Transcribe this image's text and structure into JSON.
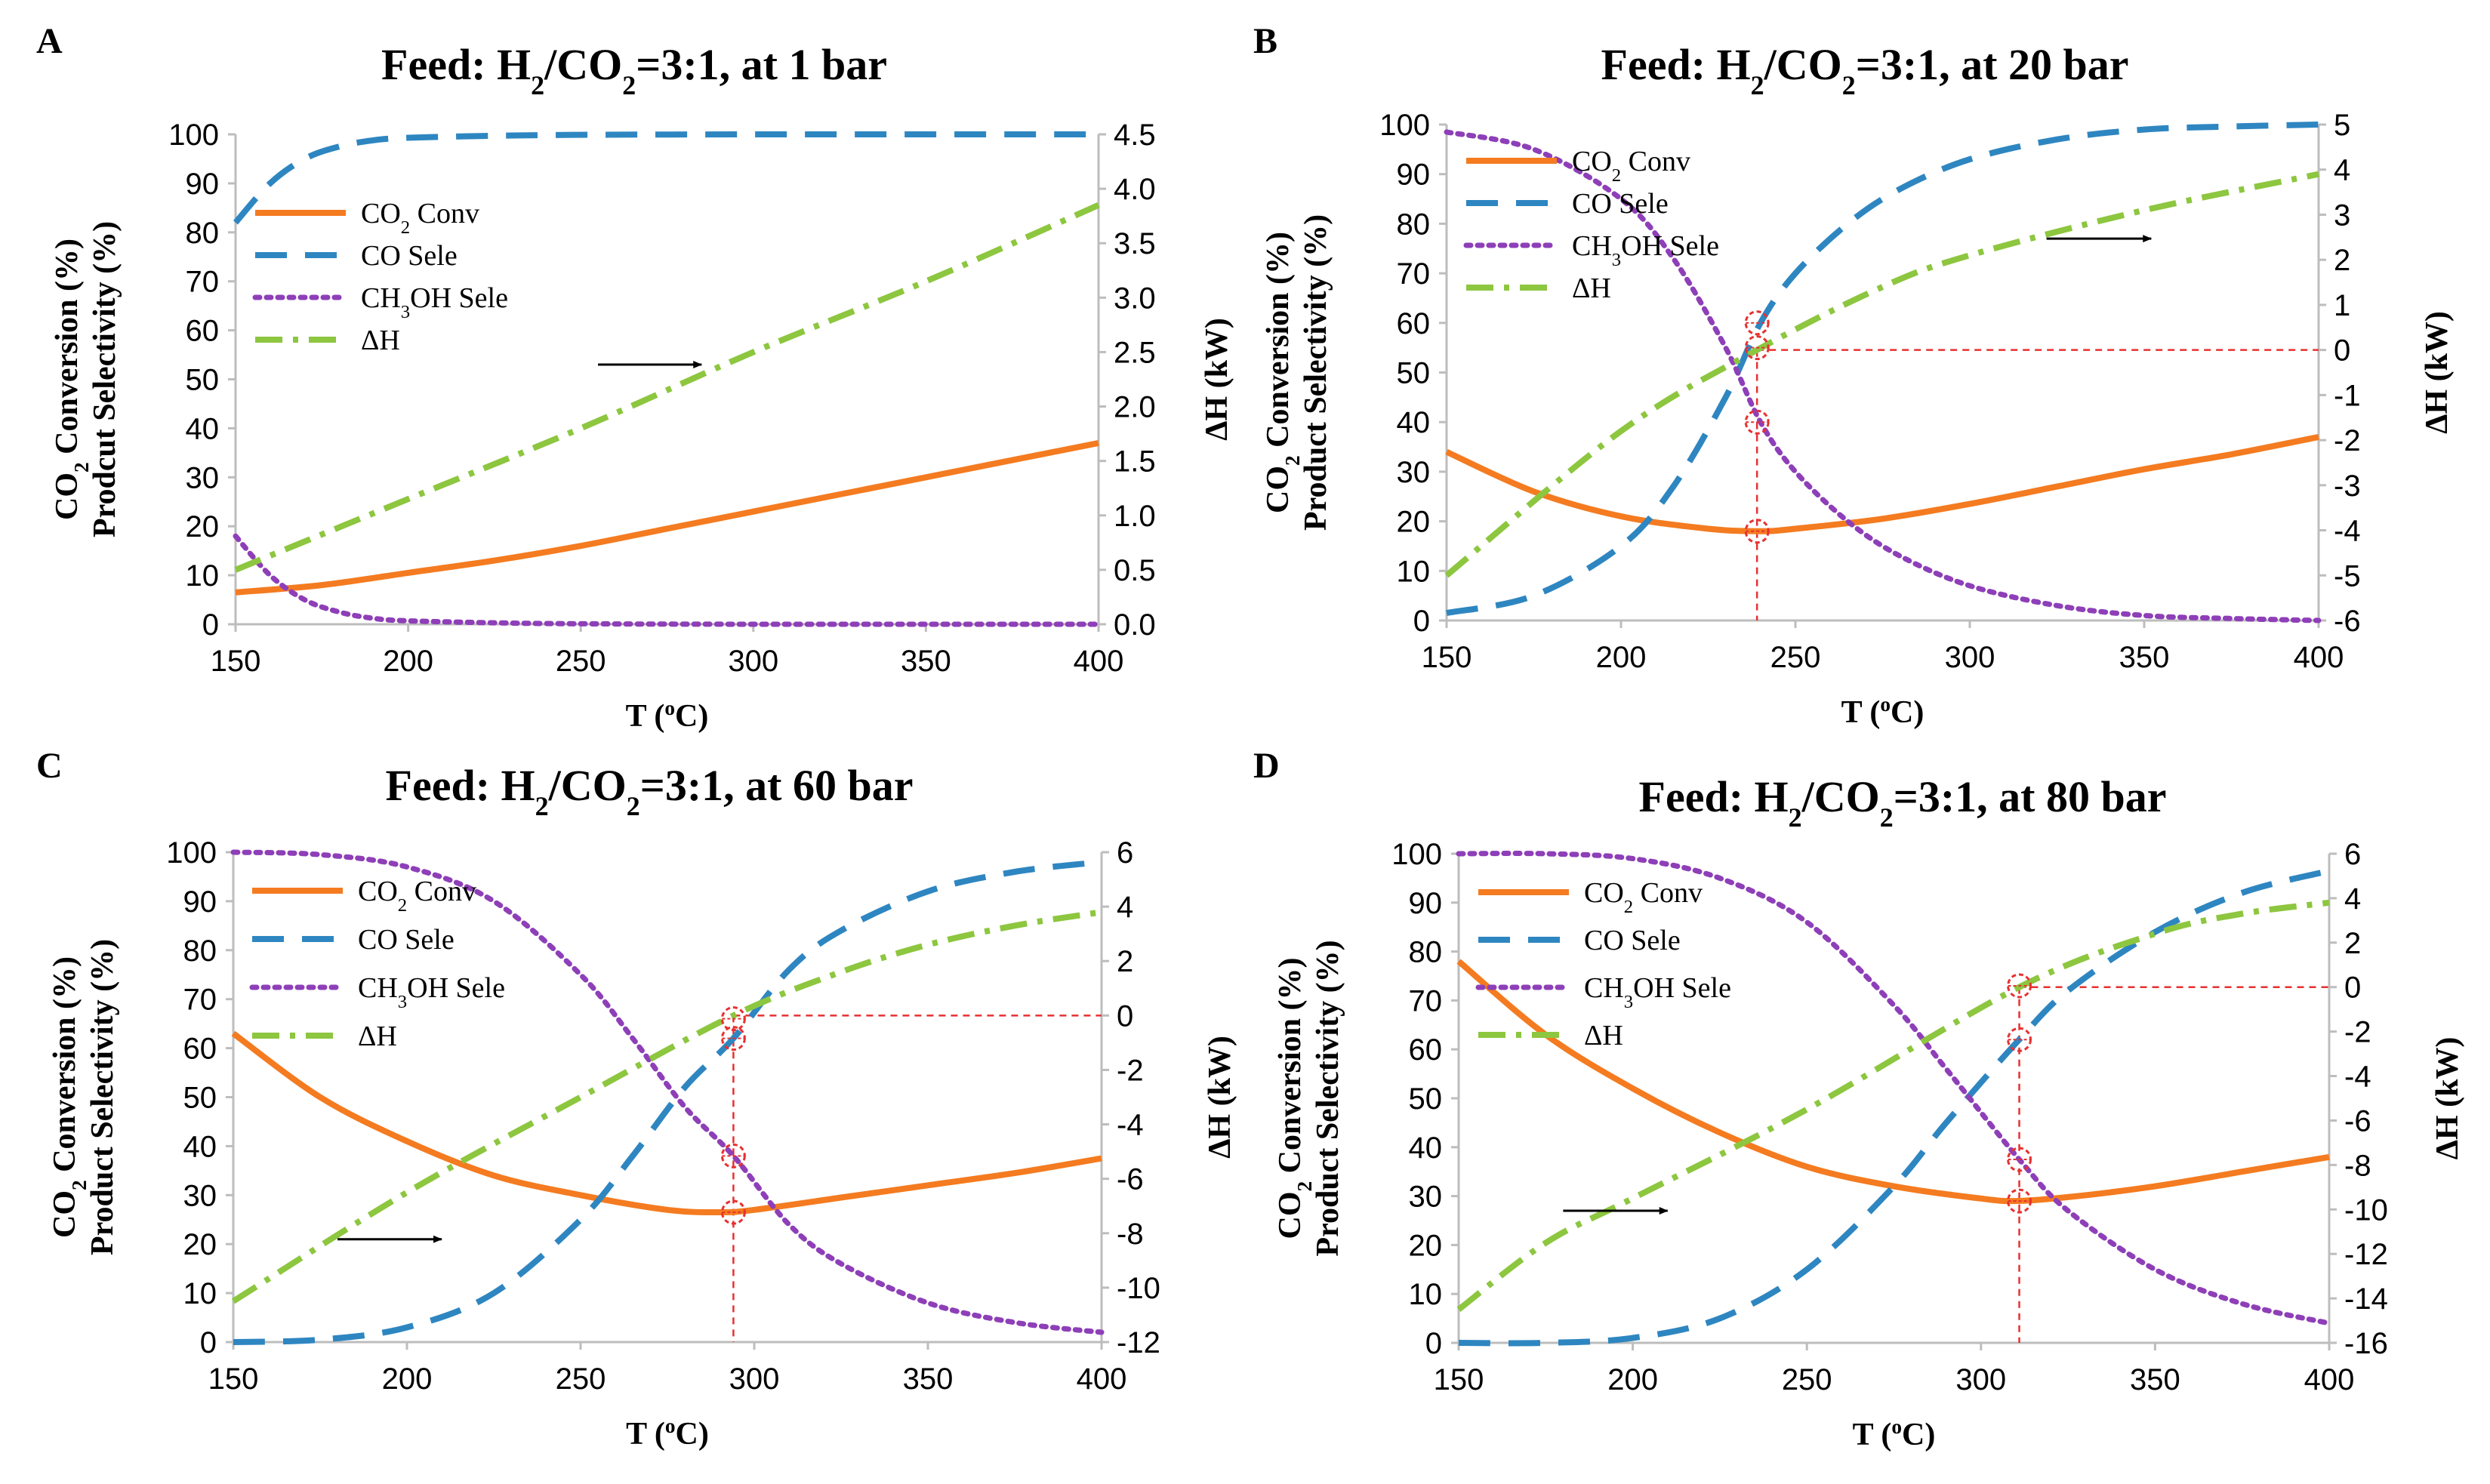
{
  "chart_data": [
    {
      "panel": "A",
      "type": "line",
      "title": "Feed: H2/CO2=3:1, at 1 bar",
      "xlabel": "T (oC)",
      "ylabel_left": [
        "CO2 Conversion (%)",
        "Prodcut Selectivity (%)"
      ],
      "ylabel_right": "ΔH (kW)",
      "xlim": [
        150,
        400
      ],
      "ylim_left": [
        0,
        100
      ],
      "ylim_right": [
        0,
        4.5
      ],
      "x_ticks": [
        150,
        200,
        250,
        300,
        350,
        400
      ],
      "y_ticks_left": [
        0,
        10,
        20,
        30,
        40,
        50,
        60,
        70,
        80,
        90,
        100
      ],
      "y_ticks_right": [
        "0.0",
        "0.5",
        "1.0",
        "1.5",
        "2.0",
        "2.5",
        "3.0",
        "3.5",
        "4.0",
        "4.5"
      ],
      "arrow": {
        "from": [
          255,
          53
        ],
        "to": [
          285,
          53
        ]
      },
      "crossing": null,
      "series": [
        {
          "key": "conv",
          "name": "CO2 Conv",
          "axis": "left",
          "x": [
            150,
            175,
            200,
            225,
            250,
            275,
            300,
            325,
            350,
            375,
            400
          ],
          "values": [
            6.5,
            8,
            10.5,
            13,
            16,
            19.5,
            23,
            26.5,
            30,
            33.5,
            37
          ]
        },
        {
          "key": "co",
          "name": "CO Sele",
          "axis": "left",
          "x": [
            150,
            160,
            170,
            180,
            190,
            200,
            225,
            250,
            300,
            350,
            400
          ],
          "values": [
            82,
            90,
            95,
            97.5,
            98.8,
            99.3,
            99.7,
            99.9,
            100,
            100,
            100
          ]
        },
        {
          "key": "ch3oh",
          "name": "CH3OH Sele",
          "axis": "left",
          "x": [
            150,
            160,
            170,
            180,
            190,
            200,
            225,
            250,
            300,
            350,
            400
          ],
          "values": [
            18,
            10,
            5,
            2.5,
            1.2,
            0.7,
            0.3,
            0.1,
            0,
            0,
            0
          ]
        },
        {
          "key": "dh",
          "name": "ΔH",
          "axis": "right",
          "x": [
            150,
            200,
            250,
            300,
            350,
            400
          ],
          "values": [
            0.5,
            1.15,
            1.8,
            2.5,
            3.15,
            3.85
          ]
        }
      ]
    },
    {
      "panel": "B",
      "type": "line",
      "title": "Feed: H2/CO2=3:1, at 20 bar",
      "xlabel": "T (oC)",
      "ylabel_left": [
        "CO2 Conversion (%)",
        "Product Selectivity (%)"
      ],
      "ylabel_right": "ΔH (kW)",
      "xlim": [
        150,
        400
      ],
      "ylim_left": [
        0,
        100
      ],
      "ylim_right": [
        -6,
        5
      ],
      "x_ticks": [
        150,
        200,
        250,
        300,
        350,
        400
      ],
      "y_ticks_left": [
        0,
        10,
        20,
        30,
        40,
        50,
        60,
        70,
        80,
        90,
        100
      ],
      "y_ticks_right": [
        -6,
        -5,
        -4,
        -3,
        -2,
        -1,
        0,
        1,
        2,
        3,
        4,
        5
      ],
      "arrow": {
        "from": [
          322,
          77
        ],
        "to": [
          352,
          77
        ]
      },
      "crossing": {
        "x": 239,
        "ref_y_right": 0,
        "markers_left": [
          60,
          55,
          40,
          18
        ]
      },
      "series": [
        {
          "key": "conv",
          "name": "CO2 Conv",
          "axis": "left",
          "x": [
            150,
            175,
            200,
            225,
            240,
            250,
            275,
            300,
            325,
            350,
            375,
            400
          ],
          "values": [
            34,
            26,
            21,
            18.5,
            18,
            18.5,
            20.5,
            23.5,
            27,
            30.5,
            33.5,
            37
          ]
        },
        {
          "key": "co",
          "name": "CO Sele",
          "axis": "left",
          "x": [
            150,
            175,
            200,
            215,
            230,
            240,
            250,
            265,
            280,
            300,
            325,
            350,
            375,
            400
          ],
          "values": [
            1.5,
            5,
            15,
            27,
            45,
            60,
            70,
            80,
            87,
            93,
            97,
            99,
            99.6,
            100
          ]
        },
        {
          "key": "ch3oh",
          "name": "CH3OH Sele",
          "axis": "left",
          "x": [
            150,
            175,
            200,
            215,
            230,
            240,
            250,
            265,
            280,
            300,
            325,
            350,
            375,
            400
          ],
          "values": [
            98.5,
            95,
            85,
            73,
            55,
            40,
            30,
            20,
            13,
            7,
            3,
            1,
            0.4,
            0
          ]
        },
        {
          "key": "dh",
          "name": "ΔH",
          "axis": "right",
          "x": [
            150,
            200,
            239,
            275,
            300,
            350,
            400
          ],
          "values": [
            -5,
            -1.8,
            0,
            1.4,
            2.1,
            3.1,
            3.9
          ]
        }
      ]
    },
    {
      "panel": "C",
      "type": "line",
      "title": "Feed: H2/CO2=3:1, at 60 bar",
      "xlabel": "T (oC)",
      "ylabel_left": [
        "CO2 Conversion (%)",
        "Product Selectivity (%)"
      ],
      "ylabel_right": "ΔH (kW)",
      "xlim": [
        150,
        400
      ],
      "ylim_left": [
        0,
        100
      ],
      "ylim_right": [
        -12,
        6
      ],
      "x_ticks": [
        150,
        200,
        250,
        300,
        350,
        400
      ],
      "y_ticks_left": [
        0,
        10,
        20,
        30,
        40,
        50,
        60,
        70,
        80,
        90,
        100
      ],
      "y_ticks_right": [
        -12,
        -10,
        -8,
        -6,
        -4,
        -2,
        0,
        2,
        4,
        6
      ],
      "arrow": {
        "from": [
          180,
          21
        ],
        "to": [
          210,
          21
        ]
      },
      "crossing": {
        "x": 294,
        "ref_y_right": 0,
        "markers_left": [
          66,
          62,
          38,
          26.5
        ]
      },
      "series": [
        {
          "key": "conv",
          "name": "CO2 Conv",
          "axis": "left",
          "x": [
            150,
            175,
            200,
            225,
            250,
            275,
            290,
            300,
            325,
            350,
            375,
            400
          ],
          "values": [
            63,
            50,
            41,
            34,
            30,
            27,
            26.5,
            27,
            29.5,
            32,
            34.5,
            37.5
          ]
        },
        {
          "key": "co",
          "name": "CO Sele",
          "axis": "left",
          "x": [
            150,
            175,
            200,
            225,
            250,
            265,
            280,
            294,
            310,
            325,
            350,
            375,
            400
          ],
          "values": [
            0,
            0.5,
            3,
            10,
            25,
            38,
            52,
            62,
            76,
            84,
            92,
            96,
            98
          ]
        },
        {
          "key": "ch3oh",
          "name": "CH3OH Sele",
          "axis": "left",
          "x": [
            150,
            175,
            200,
            225,
            250,
            265,
            280,
            294,
            310,
            325,
            350,
            375,
            400
          ],
          "values": [
            100,
            99.5,
            97,
            90,
            75,
            62,
            48,
            38,
            24,
            16,
            8,
            4,
            2
          ]
        },
        {
          "key": "dh",
          "name": "ΔH",
          "axis": "right",
          "x": [
            150,
            200,
            250,
            294,
            325,
            350,
            375,
            400
          ],
          "values": [
            -10.5,
            -6.5,
            -3,
            0,
            1.6,
            2.6,
            3.3,
            3.8
          ]
        }
      ]
    },
    {
      "panel": "D",
      "type": "line",
      "title": "Feed: H2/CO2=3:1, at 80 bar",
      "xlabel": "T (oC)",
      "ylabel_left": [
        "CO2 Conversion (%)",
        "Product Selectivity (%)"
      ],
      "ylabel_right": "ΔH (kW)",
      "xlim": [
        150,
        400
      ],
      "ylim_left": [
        0,
        100
      ],
      "ylim_right": [
        -16,
        6
      ],
      "x_ticks": [
        150,
        200,
        250,
        300,
        350,
        400
      ],
      "y_ticks_left": [
        0,
        10,
        20,
        30,
        40,
        50,
        60,
        70,
        80,
        90,
        100
      ],
      "y_ticks_right": [
        -16,
        -14,
        -12,
        -10,
        -8,
        -6,
        -4,
        -2,
        0,
        2,
        4,
        6
      ],
      "arrow": {
        "from": [
          180,
          27
        ],
        "to": [
          210,
          27
        ]
      },
      "crossing": {
        "x": 311,
        "ref_y_right": 0,
        "markers_left": [
          73,
          62,
          37.5,
          29
        ]
      },
      "series": [
        {
          "key": "conv",
          "name": "CO2 Conv",
          "axis": "left",
          "x": [
            150,
            175,
            200,
            225,
            250,
            275,
            300,
            310,
            325,
            350,
            375,
            400
          ],
          "values": [
            78,
            63,
            52,
            43,
            36,
            32,
            29.5,
            29,
            29.8,
            32,
            35,
            38
          ]
        },
        {
          "key": "co",
          "name": "CO Sele",
          "axis": "left",
          "x": [
            150,
            175,
            200,
            225,
            250,
            275,
            290,
            311,
            325,
            350,
            375,
            400
          ],
          "values": [
            0,
            0,
            1,
            5,
            15,
            32,
            45,
            62,
            72,
            84,
            92,
            96.5
          ]
        },
        {
          "key": "ch3oh",
          "name": "CH3OH Sele",
          "axis": "left",
          "x": [
            150,
            175,
            200,
            225,
            250,
            275,
            290,
            311,
            325,
            350,
            375,
            400
          ],
          "values": [
            100,
            100,
            99,
            95,
            86,
            69,
            56,
            37.5,
            27,
            15,
            8,
            4
          ]
        },
        {
          "key": "dh",
          "name": "ΔH",
          "axis": "right",
          "x": [
            150,
            175,
            200,
            250,
            311,
            350,
            375,
            400
          ],
          "values": [
            -14.5,
            -11.5,
            -9.5,
            -5.5,
            0,
            2.4,
            3.3,
            3.8
          ]
        }
      ]
    }
  ],
  "legend_style": {
    "conv": {
      "color": "#F47B20",
      "dash": ""
    },
    "co": {
      "color": "#2E86C1",
      "dash": "42,24"
    },
    "ch3oh": {
      "color": "#8E3FB8",
      "dash": "6,9"
    },
    "dh": {
      "color": "#8DC63F",
      "dash": "36,14,7,14"
    }
  },
  "marker_color": "#E83030"
}
